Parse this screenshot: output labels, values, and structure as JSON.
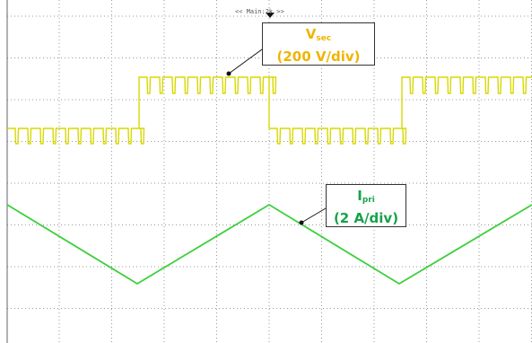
{
  "header": {
    "timebase": "<< Main:2k >>"
  },
  "annotations": [
    {
      "symbol": "V",
      "subscript": "sec",
      "scale": "(200 V/div)"
    },
    {
      "symbol": "I",
      "subscript": "pri",
      "scale": "(2 A/div)"
    }
  ]
}
